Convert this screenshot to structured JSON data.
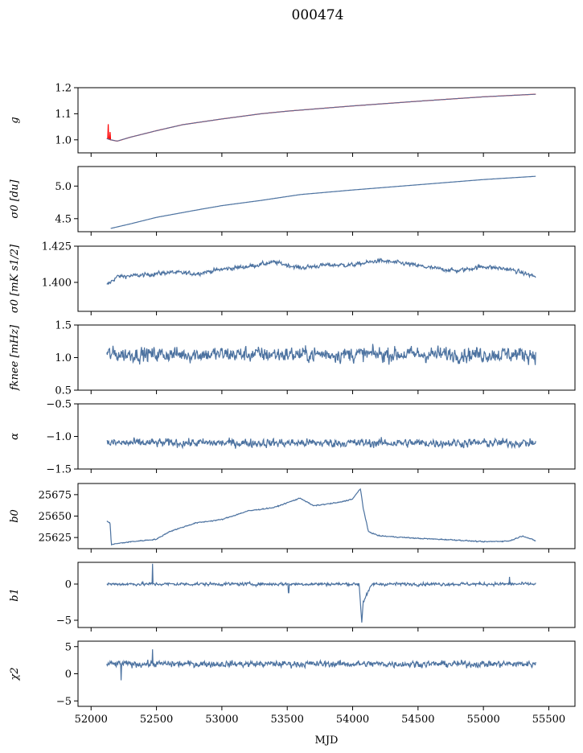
{
  "chart_data": {
    "type": "line",
    "title": "000474",
    "xlabel": "MJD",
    "xlim": [
      51900,
      55700
    ],
    "xticks": [
      52000,
      52500,
      53000,
      53500,
      54000,
      54500,
      55000,
      55500
    ],
    "xtick_labels": [
      "52000",
      "52500",
      "53000",
      "53500",
      "54000",
      "54500",
      "55000",
      "55500"
    ],
    "line_color": "#4c72a0",
    "fit_color": "#ff0000",
    "panels": [
      {
        "ylabel": "g",
        "ylabel_tex": "g",
        "ylim": [
          0.95,
          1.2
        ],
        "yticks": [
          1.0,
          1.1,
          1.2
        ],
        "ytick_labels": [
          "1.0",
          "1.1",
          "1.2"
        ],
        "line_color": "#ff0000",
        "fit_line_color": "#4c72a0",
        "x": [
          52120,
          52150,
          52200,
          52300,
          52500,
          52700,
          53000,
          53300,
          53500,
          54000,
          54500,
          55000,
          55400
        ],
        "y": [
          1.005,
          1.0,
          0.995,
          1.01,
          1.035,
          1.058,
          1.08,
          1.1,
          1.11,
          1.13,
          1.148,
          1.165,
          1.175
        ],
        "spikes": [
          {
            "x": 52130,
            "y": 1.06
          },
          {
            "x": 52145,
            "y": 1.03
          }
        ]
      },
      {
        "ylabel": "σ0 [du]",
        "ylim": [
          4.3,
          5.3
        ],
        "yticks": [
          4.5,
          5.0
        ],
        "ytick_labels": [
          "4.5",
          "5.0"
        ],
        "x": [
          52150,
          52300,
          52500,
          52800,
          53000,
          53300,
          53600,
          54000,
          54500,
          55000,
          55400
        ],
        "y": [
          4.35,
          4.42,
          4.52,
          4.63,
          4.7,
          4.78,
          4.87,
          4.94,
          5.02,
          5.1,
          5.15
        ]
      },
      {
        "ylabel": "σ0 [mK s1/2]",
        "ylim": [
          1.38,
          1.425
        ],
        "yticks": [
          1.4,
          1.425
        ],
        "ytick_labels": [
          "1.400",
          "1.425"
        ],
        "x": [
          52120,
          52200,
          52400,
          52600,
          52800,
          53000,
          53200,
          53400,
          53600,
          53800,
          54000,
          54200,
          54400,
          54600,
          54800,
          55000,
          55200,
          55400
        ],
        "y": [
          1.398,
          1.404,
          1.405,
          1.407,
          1.406,
          1.409,
          1.411,
          1.414,
          1.41,
          1.412,
          1.412,
          1.415,
          1.413,
          1.41,
          1.408,
          1.411,
          1.409,
          1.404
        ],
        "noise": 0.002
      },
      {
        "ylabel": "fknee [mHz]",
        "ylim": [
          0.5,
          1.5
        ],
        "yticks": [
          0.5,
          1.0,
          1.5
        ],
        "ytick_labels": [
          "0.5",
          "1.0",
          "1.5"
        ],
        "x": [
          52120,
          55400
        ],
        "y": [
          1.05,
          1.05
        ],
        "noise": 0.16
      },
      {
        "ylabel": "α",
        "ylim": [
          -1.5,
          -0.5
        ],
        "yticks": [
          -1.5,
          -1.0,
          -0.5
        ],
        "ytick_labels": [
          "−1.5",
          "−1.0",
          "−0.5"
        ],
        "x": [
          52120,
          55400
        ],
        "y": [
          -1.1,
          -1.1
        ],
        "noise": 0.09
      },
      {
        "ylabel": "b0",
        "ylim": [
          25612,
          25688
        ],
        "yticks": [
          25625,
          25650,
          25675
        ],
        "ytick_labels": [
          "25625",
          "25650",
          "25675"
        ],
        "x": [
          52120,
          52145,
          52155,
          52300,
          52500,
          52600,
          52800,
          53000,
          53200,
          53400,
          53600,
          53700,
          53900,
          54000,
          54060,
          54080,
          54120,
          54200,
          54500,
          54800,
          55000,
          55200,
          55300,
          55400
        ],
        "y": [
          25644,
          25642,
          25617,
          25620,
          25623,
          25632,
          25642,
          25646,
          25656,
          25660,
          25671,
          25662,
          25666,
          25670,
          25682,
          25660,
          25632,
          25627,
          25624,
          25622,
          25620,
          25621,
          25627,
          25621
        ],
        "noise": 0.8
      },
      {
        "ylabel": "b1",
        "ylim": [
          -6,
          3
        ],
        "yticks": [
          -5,
          0
        ],
        "ytick_labels": [
          "−5",
          "0"
        ],
        "x": [
          52120,
          54050,
          54070,
          54080,
          54150,
          55400
        ],
        "y": [
          0,
          0,
          -5.3,
          -2.5,
          0,
          0
        ],
        "noise": 0.3,
        "spikes": [
          {
            "x": 52470,
            "y": 2.8
          },
          {
            "x": 53510,
            "y": -1.2
          },
          {
            "x": 55200,
            "y": 1.0
          }
        ]
      },
      {
        "ylabel": "χ2",
        "ylim": [
          -6,
          6
        ],
        "yticks": [
          -5,
          0,
          5
        ],
        "ytick_labels": [
          "−5",
          "0",
          "5"
        ],
        "x": [
          52120,
          55400
        ],
        "y": [
          1.8,
          1.8
        ],
        "noise": 0.8,
        "spikes": [
          {
            "x": 52470,
            "y": 4.5
          },
          {
            "x": 52230,
            "y": -1.2
          }
        ]
      }
    ]
  }
}
